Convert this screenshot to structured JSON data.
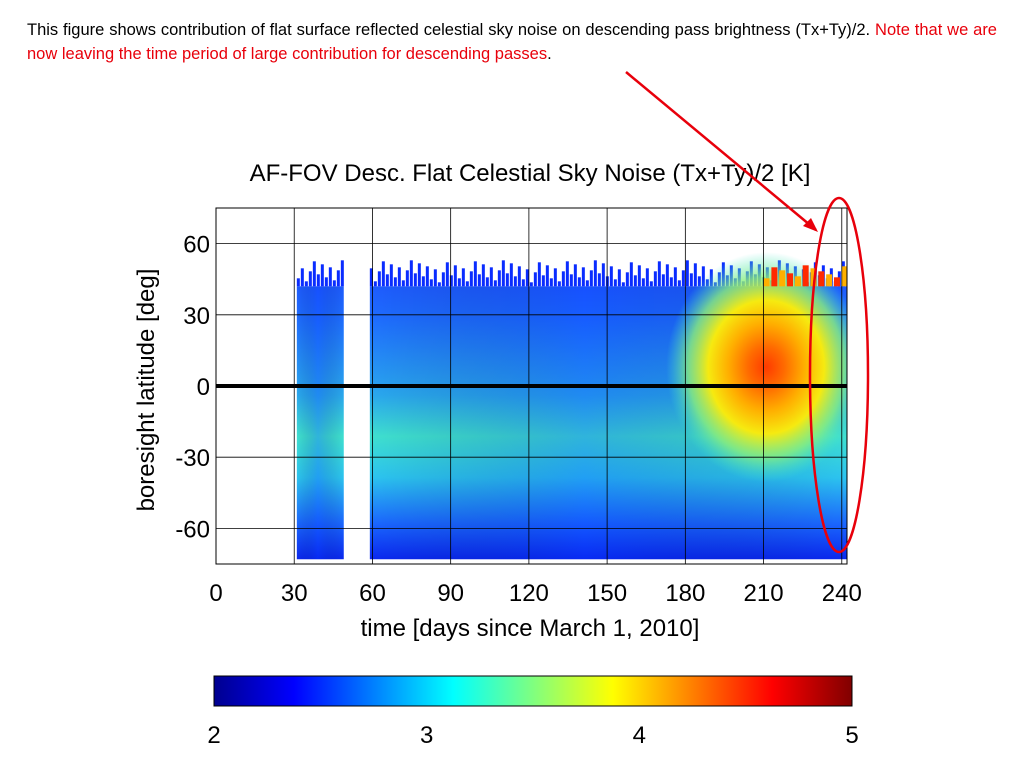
{
  "caption": {
    "text": "This figure shows contribution of flat surface reflected celestial sky noise on descending pass brightness (Tx+Ty)/2.",
    "note": "Note that we are now leaving the time period of large contribution for descending passes",
    "end": "."
  },
  "chart_data": {
    "type": "heatmap",
    "title": "AF-FOV Desc. Flat Celestial Sky Noise (Tx+Ty)/2 [K]",
    "xlabel": "time [days since March 1, 2010]",
    "ylabel": "boresight latitude [deg]",
    "xlim": [
      0,
      242
    ],
    "ylim": [
      -75,
      75
    ],
    "xticks": [
      "0",
      "30",
      "60",
      "90",
      "120",
      "150",
      "180",
      "210",
      "240"
    ],
    "yticks": [
      "60",
      "30",
      "0",
      "-30",
      "-60"
    ],
    "grid": true,
    "data_coverage_days": [
      [
        31,
        49
      ],
      [
        59,
        242
      ]
    ],
    "latitude_coverage_deg": [
      -73,
      42
    ],
    "zero_line": true,
    "colorbar": {
      "min": 2,
      "max": 5,
      "ticks": [
        "2",
        "3",
        "4",
        "5"
      ],
      "colormap": "jet"
    },
    "hotspot": {
      "day": 211,
      "lat": 8,
      "value": 4.6
    },
    "annotation": {
      "type": "ellipse",
      "color": "#e8000b",
      "x_range_days": [
        224,
        242
      ],
      "label_ref": "note"
    }
  }
}
